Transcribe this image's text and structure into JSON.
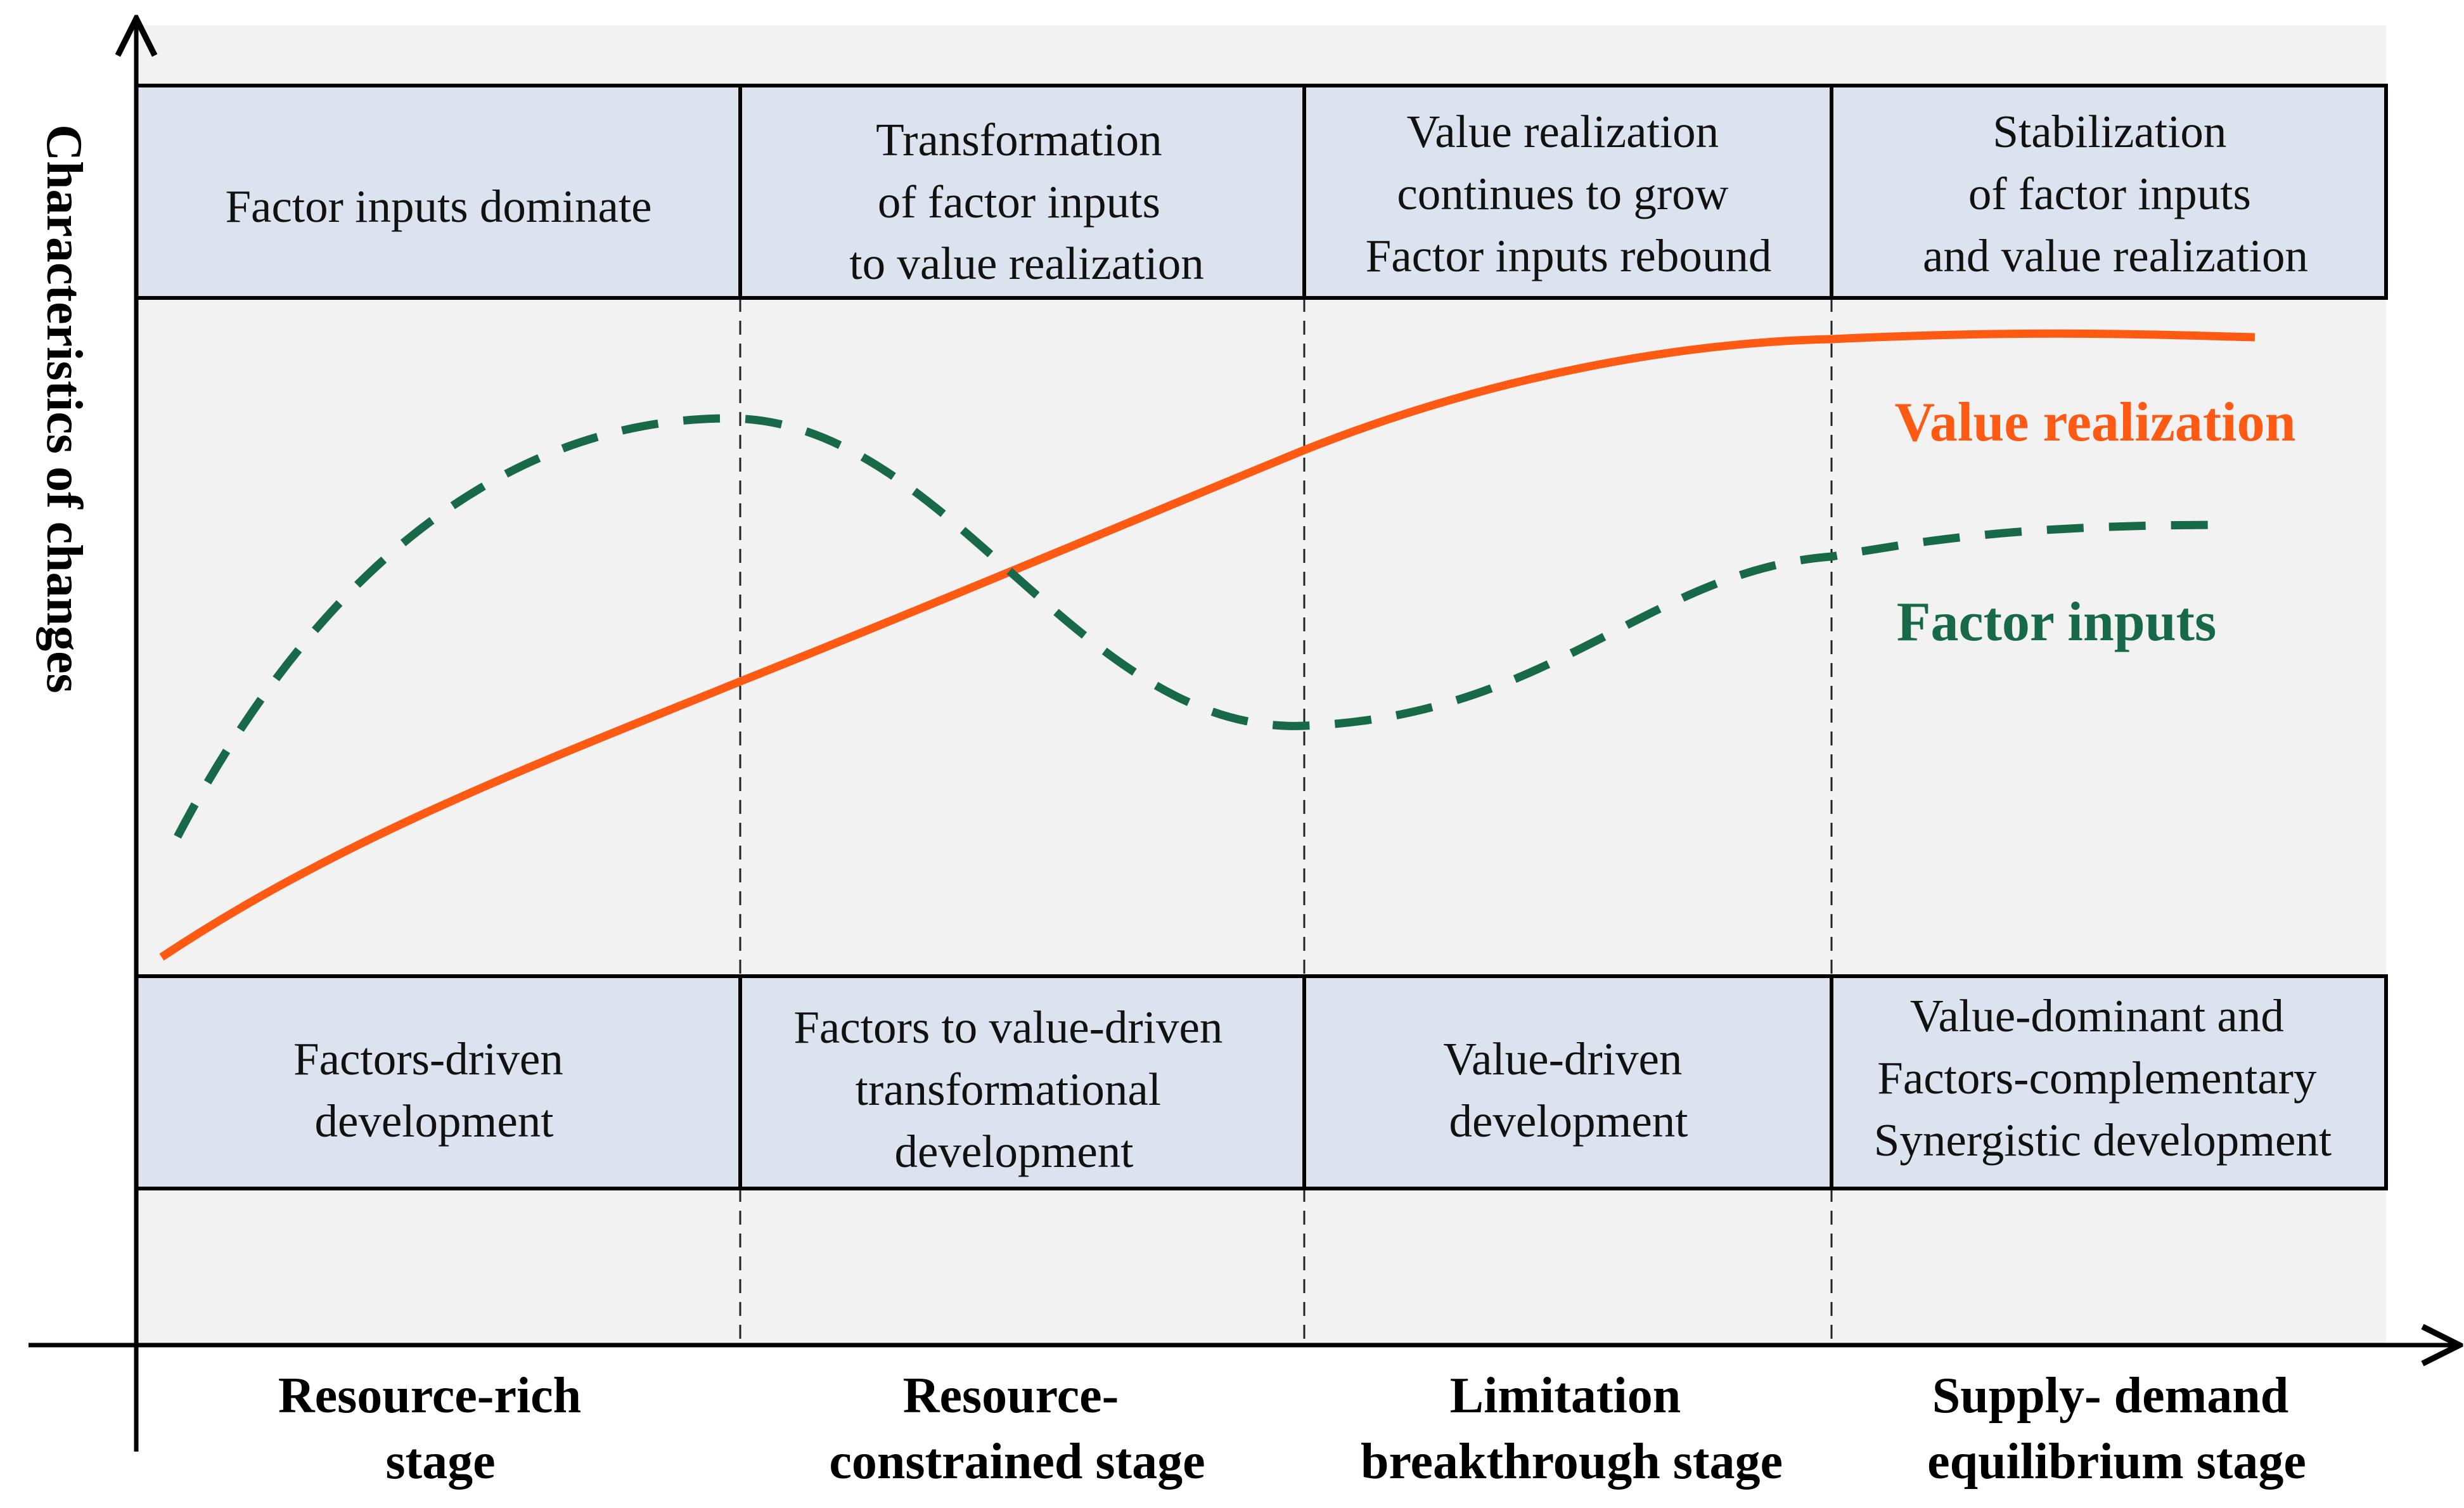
{
  "colors": {
    "plot_background": "#f2f2f2",
    "box_fill": "#dce3ef",
    "value_line": "#ff5a14",
    "factor_line": "#17694a",
    "ink": "#000000"
  },
  "y_axis_title": "Characteristics of changes",
  "top_boxes": [
    {
      "lines": [
        "Factor inputs dominate"
      ]
    },
    {
      "lines": [
        "Transformation",
        "of factor inputs",
        "to value realization"
      ]
    },
    {
      "lines": [
        "Value realization",
        "continues to grow",
        "Factor inputs rebound"
      ]
    },
    {
      "lines": [
        "Stabilization",
        "of factor inputs",
        "and value realization"
      ]
    }
  ],
  "bottom_boxes": [
    {
      "lines": [
        "Factors-driven",
        "development"
      ]
    },
    {
      "lines": [
        "Factors to value-driven",
        "transformational",
        "development"
      ]
    },
    {
      "lines": [
        "Value-driven",
        "development"
      ]
    },
    {
      "lines": [
        "Value-dominant and",
        "Factors-complementary",
        "Synergistic development"
      ]
    }
  ],
  "stages": [
    {
      "lines": [
        "Resource-rich",
        "stage"
      ]
    },
    {
      "lines": [
        "Resource-",
        "constrained stage"
      ]
    },
    {
      "lines": [
        "Limitation",
        "breakthrough stage"
      ]
    },
    {
      "lines": [
        "Supply- demand",
        "equilibrium stage"
      ]
    }
  ],
  "series": {
    "value": {
      "label": "Value realization"
    },
    "factor": {
      "label": "Factor inputs"
    }
  }
}
